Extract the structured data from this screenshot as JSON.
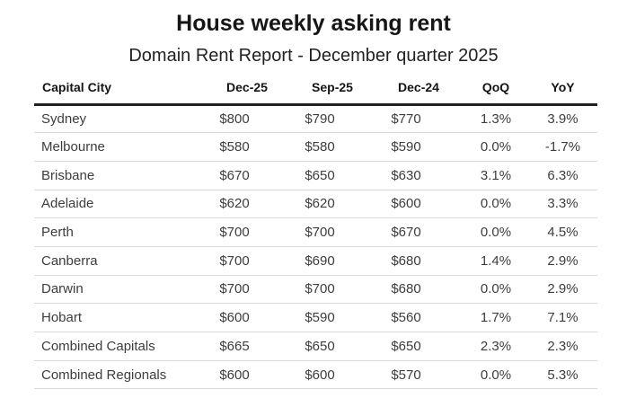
{
  "title": "House weekly asking rent",
  "subtitle": "Domain Rent Report - December quarter 2025",
  "chart_data": {
    "type": "table",
    "title": "House weekly asking rent",
    "subtitle": "Domain Rent Report - December quarter 2025",
    "columns": [
      "Capital City",
      "Dec-25",
      "Sep-25",
      "Dec-24",
      "QoQ",
      "YoY"
    ],
    "rows": [
      [
        "Sydney",
        "$800",
        "$790",
        "$770",
        "1.3%",
        "3.9%"
      ],
      [
        "Melbourne",
        "$580",
        "$580",
        "$590",
        "0.0%",
        "-1.7%"
      ],
      [
        "Brisbane",
        "$670",
        "$650",
        "$630",
        "3.1%",
        "6.3%"
      ],
      [
        "Adelaide",
        "$620",
        "$620",
        "$600",
        "0.0%",
        "3.3%"
      ],
      [
        "Perth",
        "$700",
        "$700",
        "$670",
        "0.0%",
        "4.5%"
      ],
      [
        "Canberra",
        "$700",
        "$690",
        "$680",
        "1.4%",
        "2.9%"
      ],
      [
        "Darwin",
        "$700",
        "$700",
        "$680",
        "0.0%",
        "2.9%"
      ],
      [
        "Hobart",
        "$600",
        "$590",
        "$560",
        "1.7%",
        "7.1%"
      ],
      [
        "Combined Capitals",
        "$665",
        "$650",
        "$650",
        "2.3%",
        "2.3%"
      ],
      [
        "Combined Regionals",
        "$600",
        "$600",
        "$570",
        "0.0%",
        "5.3%"
      ]
    ],
    "layout": {
      "first_column_align": "left",
      "value_columns_align": "center",
      "grid": "horizontal rules only",
      "header_rule": "thick",
      "legend": "none"
    }
  },
  "colors": {
    "background": "#ffffff",
    "title_text": "#161616",
    "body_text": "#3d3d3d",
    "header_rule": "#212121",
    "row_rule": "#d9d9d9"
  }
}
